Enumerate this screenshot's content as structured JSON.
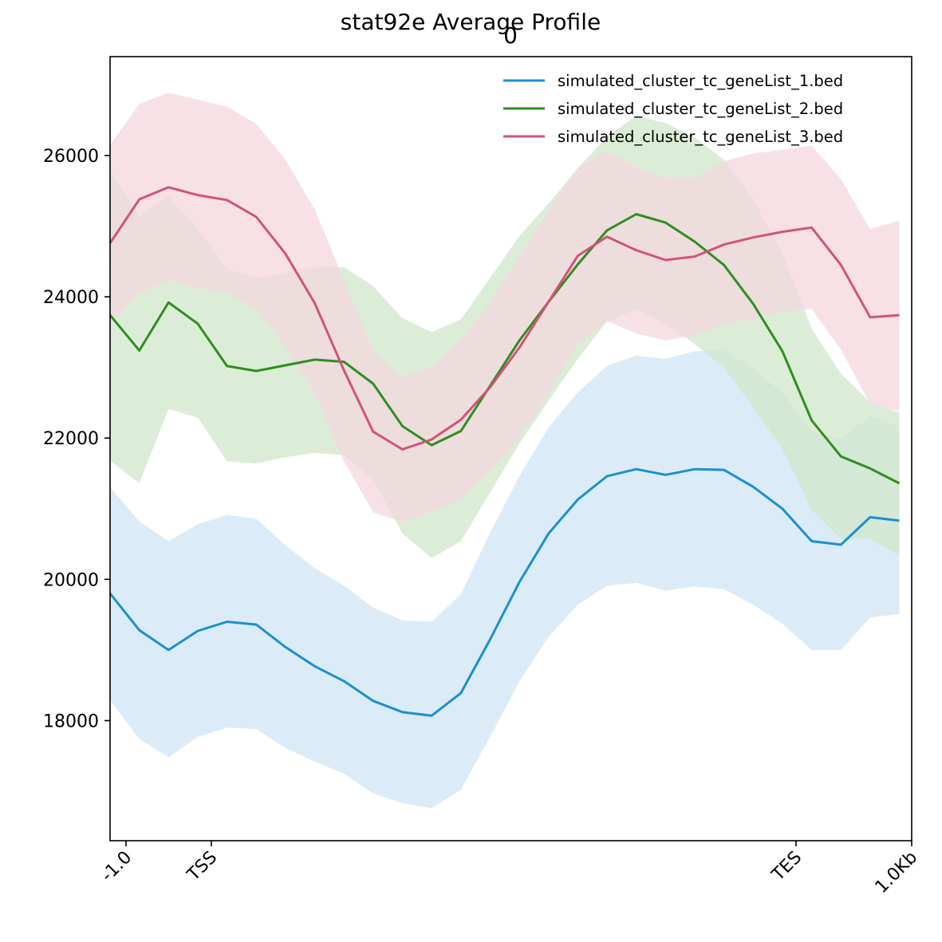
{
  "chart_data": {
    "type": "line",
    "title": "stat92e Average Profile",
    "subtitle": "0",
    "x_ticks": [
      "-1.0",
      "TSS",
      "TES",
      "1.0Kb"
    ],
    "y_ticks": [
      "18000",
      "20000",
      "22000",
      "24000",
      "26000"
    ],
    "ylim": [
      16300,
      27400
    ],
    "legend_position": "top-right",
    "series": [
      {
        "name": "simulated_cluster_tc_geneList_1.bed",
        "color": "#1b8fd1",
        "band_color": "#cfe5f5",
        "values": [
          19800,
          19280,
          19000,
          19270,
          19400,
          19360,
          19040,
          18770,
          18560,
          18280,
          18120,
          18070,
          18390,
          19150,
          19960,
          20650,
          21130,
          21460,
          21560,
          21480,
          21560,
          21550,
          21310,
          21000,
          20540,
          20490,
          20880,
          20830
        ],
        "upper": [
          21300,
          20820,
          20540,
          20780,
          20910,
          20860,
          20480,
          20160,
          19910,
          19600,
          19420,
          19400,
          19790,
          20660,
          21460,
          22150,
          22650,
          23020,
          23170,
          23120,
          23230,
          23240,
          22990,
          22640,
          22100,
          21990,
          22310,
          22170
        ],
        "lower": [
          18290,
          17740,
          17480,
          17770,
          17900,
          17880,
          17610,
          17420,
          17250,
          16970,
          16830,
          16760,
          17020,
          17770,
          18550,
          19190,
          19640,
          19910,
          19950,
          19840,
          19900,
          19860,
          19640,
          19370,
          19000,
          19000,
          19460,
          19510
        ]
      },
      {
        "name": "simulated_cluster_tc_geneList_2.bed",
        "color": "#2e8f1e",
        "band_color": "#d0e7ca",
        "values": [
          23740,
          23240,
          23920,
          23620,
          23020,
          22950,
          23030,
          23110,
          23080,
          22770,
          22170,
          21900,
          22100,
          22740,
          23380,
          23930,
          24460,
          24940,
          25170,
          25050,
          24780,
          24450,
          23900,
          23230,
          22250,
          21740,
          21570,
          21360
        ],
        "upper": [
          25770,
          25140,
          25420,
          24960,
          24390,
          24270,
          24340,
          24420,
          24420,
          24150,
          23700,
          23500,
          23680,
          24270,
          24860,
          25320,
          25820,
          26270,
          26560,
          26460,
          26260,
          25940,
          25380,
          24620,
          23550,
          22910,
          22510,
          22360
        ],
        "lower": [
          21680,
          21360,
          22410,
          22290,
          21670,
          21640,
          21730,
          21790,
          21760,
          21410,
          20650,
          20300,
          20540,
          21230,
          21920,
          22530,
          23120,
          23650,
          23820,
          23620,
          23330,
          23000,
          22430,
          21850,
          20980,
          20570,
          20570,
          20340
        ]
      },
      {
        "name": "simulated_cluster_tc_geneList_3.bed",
        "color": "#d1537a",
        "band_color": "#f4d7df",
        "values": [
          24760,
          25380,
          25550,
          25440,
          25370,
          25130,
          24610,
          23910,
          22960,
          22090,
          21840,
          21980,
          22260,
          22720,
          23280,
          23930,
          24580,
          24850,
          24660,
          24520,
          24570,
          24740,
          24840,
          24920,
          24980,
          24450,
          23710,
          23740
        ],
        "upper": [
          26150,
          26730,
          26890,
          26790,
          26690,
          26450,
          25940,
          25240,
          24240,
          23250,
          22870,
          23010,
          23390,
          23920,
          24570,
          25230,
          25830,
          26060,
          25840,
          25680,
          25690,
          25920,
          26030,
          26080,
          26140,
          25670,
          24960,
          25080
        ],
        "lower": [
          23600,
          24050,
          24230,
          24120,
          24060,
          23820,
          23300,
          22620,
          21670,
          20950,
          20810,
          20950,
          21140,
          21530,
          22010,
          22640,
          23330,
          23660,
          23480,
          23380,
          23460,
          23610,
          23690,
          23790,
          23830,
          23250,
          22480,
          22380
        ]
      }
    ]
  }
}
